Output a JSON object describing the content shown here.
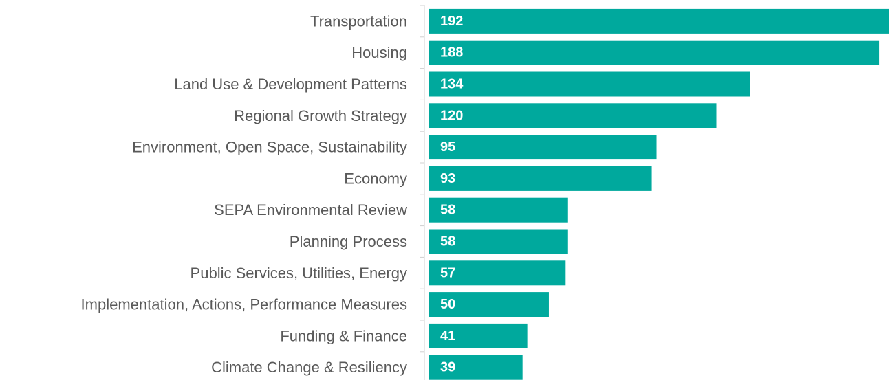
{
  "chart_data": {
    "type": "bar",
    "orientation": "horizontal",
    "categories": [
      "Transportation",
      "Housing",
      "Land Use & Development Patterns",
      "Regional Growth Strategy",
      "Environment, Open Space, Sustainability",
      "Economy",
      "SEPA Environmental Review",
      "Planning Process",
      "Public Services, Utilities, Energy",
      "Implementation, Actions, Performance Measures",
      "Funding & Finance",
      "Climate Change & Resiliency"
    ],
    "values": [
      192,
      188,
      134,
      120,
      95,
      93,
      58,
      58,
      57,
      50,
      41,
      39
    ],
    "color": "#00a99d"
  }
}
